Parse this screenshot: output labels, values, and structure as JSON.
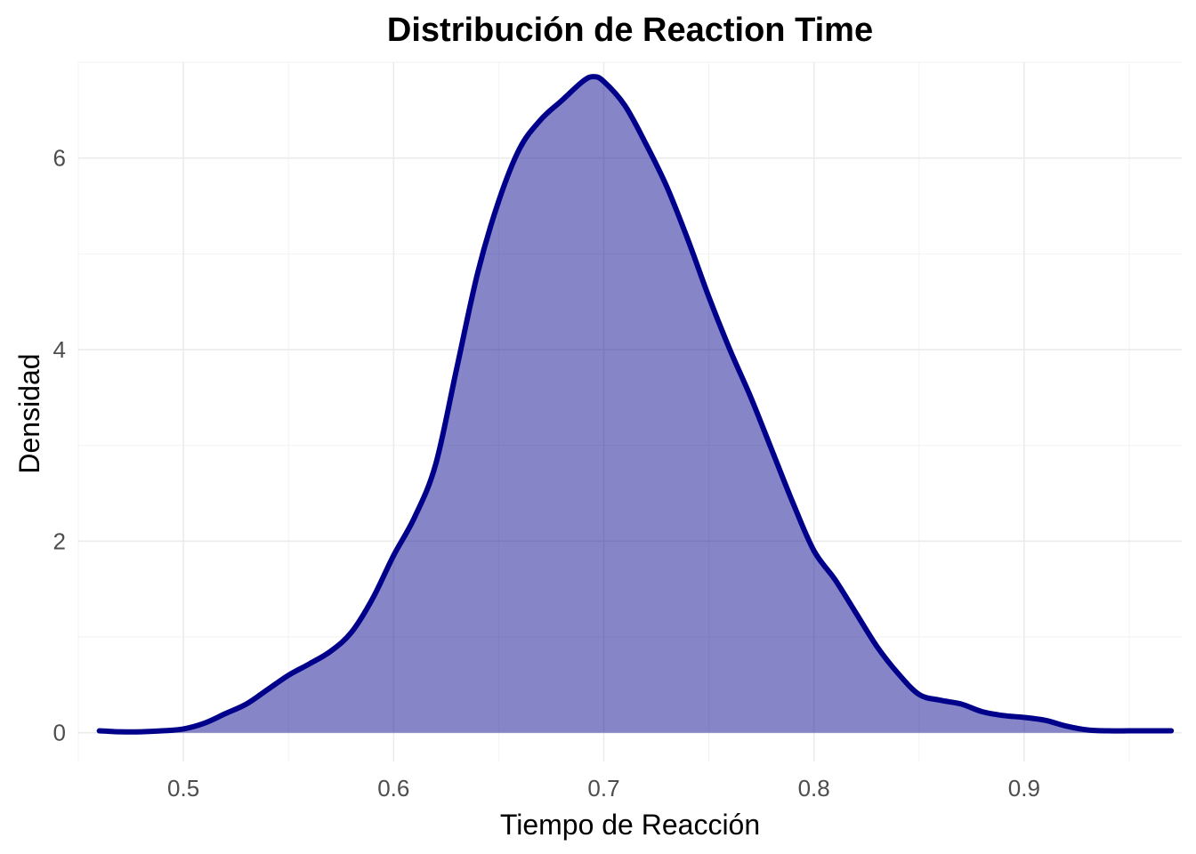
{
  "chart_data": {
    "type": "area",
    "title": "Distribución de Reaction Time",
    "xlabel": "Tiempo de Reacción",
    "ylabel": "Densidad",
    "xlim": [
      0.45,
      0.975
    ],
    "ylim": [
      -0.3,
      7.0
    ],
    "x_ticks": [
      0.5,
      0.6,
      0.7,
      0.8,
      0.9
    ],
    "x_tick_labels": [
      "0.5",
      "0.6",
      "0.7",
      "0.8",
      "0.9"
    ],
    "y_ticks": [
      0,
      2,
      4,
      6
    ],
    "y_tick_labels": [
      "0",
      "2",
      "4",
      "6"
    ],
    "grid": true,
    "legend": "none",
    "colors": {
      "fill": "#00008B",
      "fill_opacity": 0.48,
      "line": "#00008B"
    },
    "series": [
      {
        "x": [
          0.46,
          0.47,
          0.48,
          0.49,
          0.5,
          0.51,
          0.52,
          0.53,
          0.54,
          0.55,
          0.56,
          0.57,
          0.58,
          0.59,
          0.6,
          0.61,
          0.62,
          0.63,
          0.64,
          0.65,
          0.66,
          0.67,
          0.68,
          0.69,
          0.695,
          0.7,
          0.71,
          0.72,
          0.73,
          0.74,
          0.75,
          0.76,
          0.77,
          0.78,
          0.79,
          0.8,
          0.81,
          0.82,
          0.83,
          0.84,
          0.85,
          0.86,
          0.87,
          0.88,
          0.89,
          0.9,
          0.91,
          0.92,
          0.93,
          0.94,
          0.95,
          0.96,
          0.97
        ],
        "y": [
          0.02,
          0.01,
          0.01,
          0.02,
          0.04,
          0.1,
          0.2,
          0.3,
          0.45,
          0.6,
          0.72,
          0.85,
          1.05,
          1.4,
          1.85,
          2.25,
          2.8,
          3.8,
          4.8,
          5.55,
          6.1,
          6.4,
          6.6,
          6.8,
          6.85,
          6.8,
          6.55,
          6.15,
          5.7,
          5.15,
          4.55,
          4.0,
          3.5,
          2.95,
          2.4,
          1.9,
          1.6,
          1.25,
          0.9,
          0.62,
          0.4,
          0.34,
          0.3,
          0.22,
          0.18,
          0.16,
          0.13,
          0.07,
          0.03,
          0.02,
          0.02,
          0.02,
          0.02
        ]
      }
    ]
  }
}
